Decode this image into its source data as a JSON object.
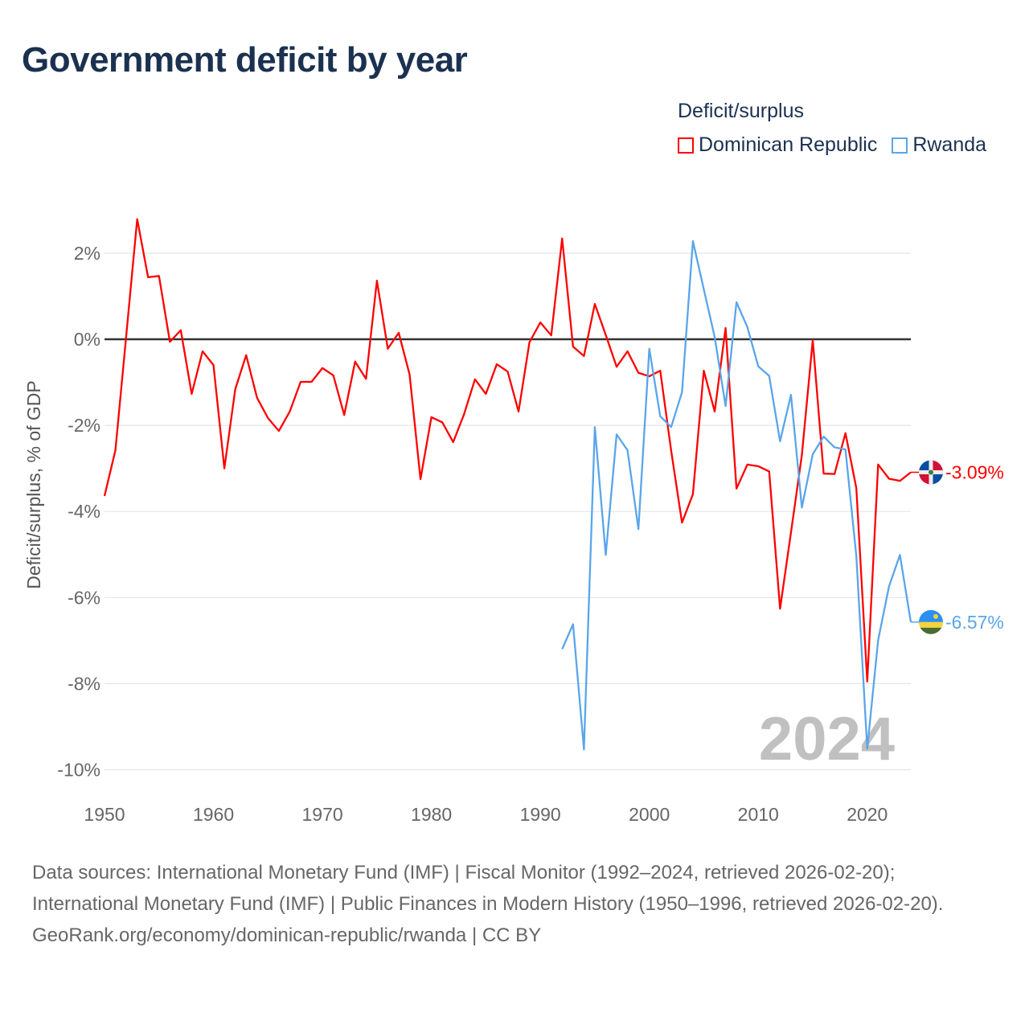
{
  "title": "Government deficit by year",
  "legend_title": "Deficit/surplus",
  "watermark_year": "2024",
  "colors": {
    "dominican_republic": "#ff0000",
    "rwanda": "#5aa5ea",
    "zero_line": "#333333",
    "grid": "#e6e6e6"
  },
  "footer": {
    "sources": "Data sources: International Monetary Fund (IMF) | Fiscal Monitor (1992–2024, retrieved 2026-02-20); International Monetary Fund (IMF) | Public Finances in Modern History (1950–1996, retrieved 2026-02-20).",
    "credit": "GeoRank.org/economy/dominican-republic/rwanda | CC BY"
  },
  "chart_data": {
    "type": "line",
    "title": "Government deficit by year",
    "xlabel": "",
    "ylabel": "Deficit/surplus, % of GDP",
    "xlim": [
      1950,
      2024
    ],
    "ylim": [
      -10,
      2
    ],
    "x_ticks": [
      1950,
      1960,
      1970,
      1980,
      1990,
      2000,
      2010,
      2020
    ],
    "y_ticks": [
      2,
      0,
      -2,
      -4,
      -6,
      -8,
      -10
    ],
    "y_tick_labels": [
      "2%",
      "0%",
      "-2%",
      "-4%",
      "-6%",
      "-8%",
      "-10%"
    ],
    "grid": true,
    "legend_position": "top-right",
    "series": [
      {
        "name": "Dominican Republic",
        "color": "#ff0000",
        "end_label": "-3.09%",
        "start_year": 1950,
        "values": [
          -3.64,
          -2.58,
          0.1,
          2.79,
          1.44,
          1.47,
          -0.06,
          0.21,
          -1.27,
          -0.28,
          -0.6,
          -3.0,
          -1.16,
          -0.37,
          -1.36,
          -1.83,
          -2.13,
          -1.68,
          -0.99,
          -0.99,
          -0.67,
          -0.84,
          -1.76,
          -0.52,
          -0.92,
          1.36,
          -0.22,
          0.15,
          -0.82,
          -3.25,
          -1.81,
          -1.93,
          -2.39,
          -1.74,
          -0.93,
          -1.27,
          -0.58,
          -0.75,
          -1.68,
          -0.07,
          0.39,
          0.09,
          2.34,
          -0.17,
          -0.39,
          0.82,
          0.1,
          -0.64,
          -0.28,
          -0.78,
          -0.86,
          -0.73,
          -2.58,
          -4.26,
          -3.6,
          -0.73,
          -1.68,
          0.26,
          -3.47,
          -2.91,
          -2.95,
          -3.07,
          -6.26,
          -4.49,
          -2.69,
          -0.02,
          -3.12,
          -3.13,
          -2.18,
          -3.46,
          -7.95,
          -2.91,
          -3.24,
          -3.29,
          -3.09
        ]
      },
      {
        "name": "Rwanda",
        "color": "#5aa5ea",
        "end_label": "-6.57%",
        "start_year": 1992,
        "values": [
          -7.2,
          -6.62,
          -9.53,
          -2.04,
          -5.01,
          -2.21,
          -2.58,
          -4.41,
          -0.22,
          -1.79,
          -2.04,
          -1.23,
          2.28,
          1.16,
          0.05,
          -1.55,
          0.86,
          0.28,
          -0.63,
          -0.85,
          -2.37,
          -1.29,
          -3.91,
          -2.67,
          -2.26,
          -2.51,
          -2.56,
          -5.04,
          -9.51,
          -6.99,
          -5.74,
          -5.01,
          -6.57
        ]
      }
    ]
  }
}
